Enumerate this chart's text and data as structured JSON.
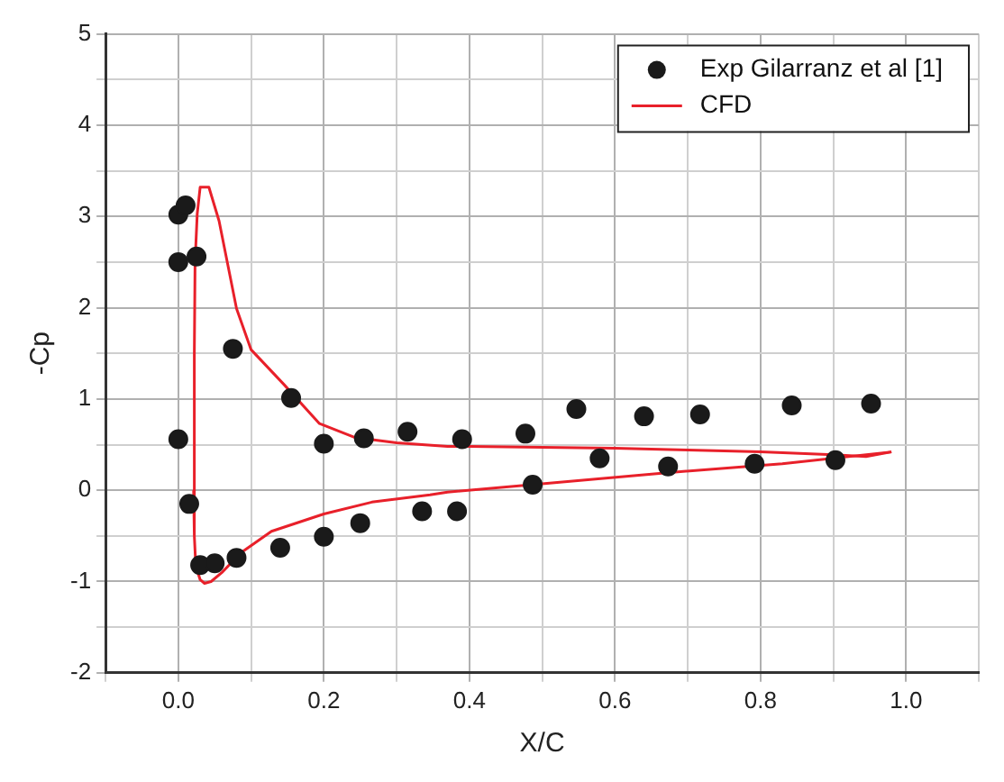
{
  "chart_data": {
    "type": "scatter",
    "xlabel": "X/C",
    "ylabel": "-Cp",
    "xlim": [
      -0.1,
      1.1
    ],
    "ylim": [
      -2,
      5
    ],
    "xticks": [
      {
        "value": -0.1,
        "label": null
      },
      {
        "value": 0,
        "label": "0.0"
      },
      {
        "value": 0.1,
        "label": null
      },
      {
        "value": 0.2,
        "label": "0.2"
      },
      {
        "value": 0.3,
        "label": null
      },
      {
        "value": 0.4,
        "label": "0.4"
      },
      {
        "value": 0.5,
        "label": null
      },
      {
        "value": 0.6,
        "label": "0.6"
      },
      {
        "value": 0.7,
        "label": null
      },
      {
        "value": 0.8,
        "label": "0.8"
      },
      {
        "value": 0.9,
        "label": null
      },
      {
        "value": 1,
        "label": "1.0"
      },
      {
        "value": 1.1,
        "label": null
      }
    ],
    "yticks": [
      -2,
      {
        "value": -1.5,
        "label": null
      },
      -1,
      {
        "value": -0.5,
        "label": null
      },
      0,
      {
        "value": 0.5,
        "label": null
      },
      1,
      {
        "value": 1.5,
        "label": null
      },
      2,
      {
        "value": 2.5,
        "label": null
      },
      3,
      {
        "value": 3.5,
        "label": null
      },
      4,
      {
        "value": 4.5,
        "label": null
      },
      5
    ],
    "grid": true,
    "legend": "top right",
    "series": [
      {
        "name": "Exp Gilarranz et al [1]",
        "type": "scatter",
        "marker": "circle",
        "color": "#1a1a1a",
        "x": [
          0.0,
          0.0,
          0.01,
          0.0,
          0.025,
          0.015,
          0.03,
          0.05,
          0.08,
          0.075,
          0.155,
          0.2,
          0.255,
          0.315,
          0.39,
          0.477,
          0.547,
          0.64,
          0.717,
          0.843,
          0.952,
          0.14,
          0.2,
          0.25,
          0.335,
          0.383,
          0.487,
          0.579,
          0.673,
          0.792,
          0.903
        ],
        "values": [
          0.56,
          3.02,
          3.12,
          2.5,
          2.56,
          -0.15,
          -0.82,
          -0.8,
          -0.74,
          1.55,
          1.01,
          0.51,
          0.57,
          0.64,
          0.56,
          0.62,
          0.89,
          0.81,
          0.83,
          0.93,
          0.95,
          -0.63,
          -0.51,
          -0.36,
          -0.23,
          -0.23,
          0.06,
          0.35,
          0.26,
          0.29,
          0.33
        ]
      },
      {
        "name": "CFD",
        "type": "line",
        "marker": "none",
        "color": "#e8202a",
        "x": [
          0.021,
          0.022,
          0.023,
          0.026,
          0.03,
          0.036,
          0.042,
          0.056,
          0.08,
          0.1,
          0.145,
          0.194,
          0.242,
          0.3,
          0.37,
          0.4,
          0.5,
          0.6,
          0.7,
          0.8,
          0.9,
          0.945,
          0.98
        ],
        "values": [
          0,
          1.5,
          2.5,
          3.03,
          3.32,
          3.32,
          3.32,
          2.95,
          1.99,
          1.54,
          1.16,
          0.73,
          0.58,
          0.52,
          0.48,
          0.48,
          0.47,
          0.46,
          0.44,
          0.42,
          0.39,
          0.37,
          0.42
        ]
      },
      {
        "type": "line",
        "marker": "none",
        "color": "#e8202a",
        "x": [
          0.021,
          0.022,
          0.024,
          0.03,
          0.036,
          0.045,
          0.06,
          0.087,
          0.128,
          0.2,
          0.266,
          0.346,
          0.37,
          0.668,
          0.83,
          0.98
        ],
        "values": [
          0,
          -0.5,
          -0.83,
          -0.98,
          -1.02,
          -1.0,
          -0.9,
          -0.68,
          -0.45,
          -0.26,
          -0.13,
          -0.05,
          -0.02,
          0.19,
          0.29,
          0.42
        ]
      }
    ]
  }
}
